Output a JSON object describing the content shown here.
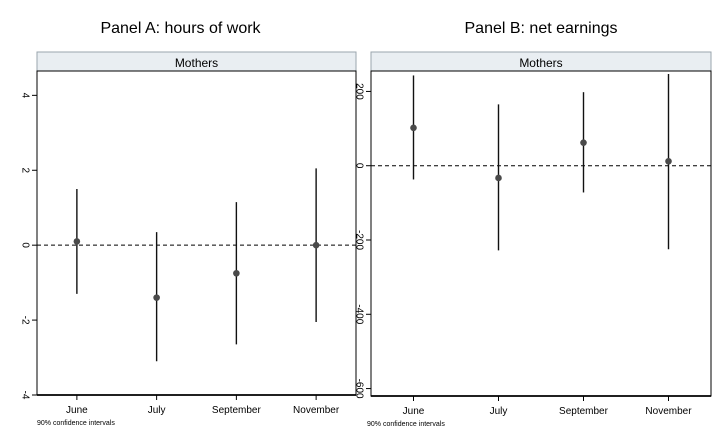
{
  "chart_data": [
    {
      "type": "errorbar",
      "panel_title": "Panel A: hours of work",
      "title": "Mothers",
      "categories": [
        "June",
        "July",
        "September",
        "November"
      ],
      "series": [
        {
          "values": [
            0.1,
            -1.4,
            -0.75,
            0.0
          ],
          "ci_low": [
            -1.3,
            -3.1,
            -2.65,
            -2.05
          ],
          "ci_high": [
            1.5,
            0.35,
            1.15,
            2.05
          ]
        }
      ],
      "ylim": [
        -4,
        4.65
      ],
      "yticks": [
        -4,
        -2,
        0,
        2,
        4
      ],
      "reference_line": 0,
      "note": "90% confidence intervals"
    },
    {
      "type": "errorbar",
      "panel_title": "Panel B: net earnings",
      "title": "Mothers",
      "categories": [
        "June",
        "July",
        "September",
        "November"
      ],
      "series": [
        {
          "values": [
            102,
            -33,
            62,
            12
          ],
          "ci_low": [
            -37,
            -228,
            -72,
            -225
          ],
          "ci_high": [
            243,
            165,
            198,
            247
          ]
        }
      ],
      "ylim": [
        -620,
        255
      ],
      "yticks": [
        -600,
        -400,
        -200,
        0,
        200
      ],
      "reference_line": 0,
      "note": "90% confidence intervals"
    }
  ]
}
